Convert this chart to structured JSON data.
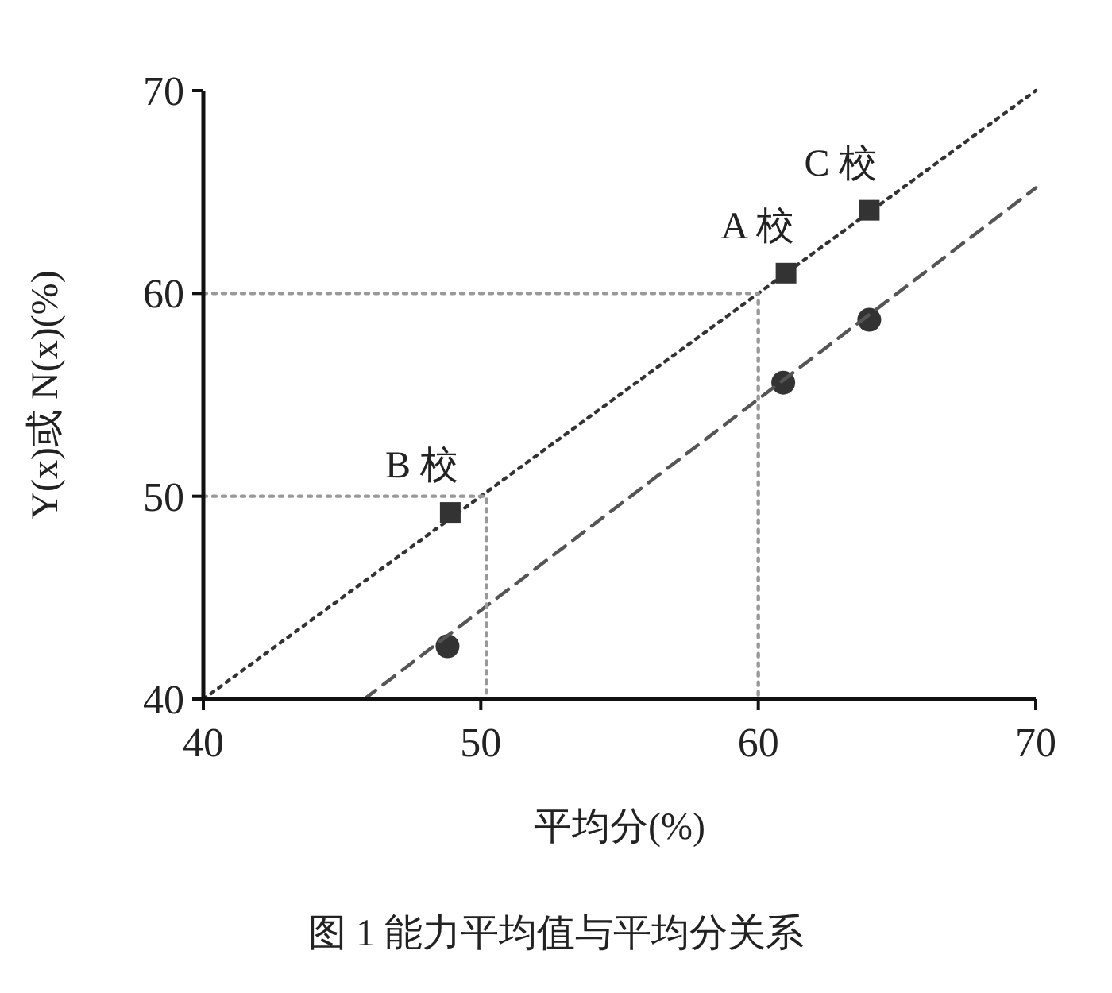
{
  "chart_data": {
    "type": "scatter",
    "xlabel": "平均分(%)",
    "ylabel": "Y(x)或 N(x)(%)",
    "xlim": [
      40,
      70
    ],
    "ylim": [
      40,
      70
    ],
    "xticks": [
      40,
      50,
      60,
      70
    ],
    "yticks": [
      40,
      50,
      60,
      70
    ],
    "grid": false,
    "series": [
      {
        "marker": "square",
        "color": "#333333",
        "x": [
          48.9,
          61.0,
          64.0
        ],
        "values": [
          49.2,
          61.0,
          64.1
        ]
      },
      {
        "marker": "circle",
        "color": "#333333",
        "x": [
          48.8,
          60.9,
          64.0
        ],
        "values": [
          42.6,
          55.6,
          58.7
        ]
      },
      {
        "type": "line",
        "line_style": "dotted",
        "color": "#333333",
        "x": [
          40,
          70
        ],
        "values": [
          40,
          70
        ]
      },
      {
        "type": "line",
        "line_style": "dashed",
        "color": "#555555",
        "x": [
          45.8,
          70
        ],
        "values": [
          40,
          65.2
        ]
      },
      {
        "type": "line",
        "line_style": "dotted",
        "color": "#999999",
        "x": [
          40,
          60,
          60
        ],
        "values": [
          60,
          60,
          40
        ]
      },
      {
        "type": "line",
        "line_style": "dotted",
        "color": "#999999",
        "x": [
          40,
          50.2,
          50.2
        ],
        "values": [
          50,
          50,
          40
        ]
      }
    ],
    "annotations": [
      {
        "text": "B 校",
        "x": 48.9,
        "y": 49.2
      },
      {
        "text": "A 校",
        "x": 61.0,
        "y": 61.0
      },
      {
        "text": "C 校",
        "x": 64.0,
        "y": 64.1
      },
      "图 1  能力平均值与平均分关系"
    ]
  }
}
